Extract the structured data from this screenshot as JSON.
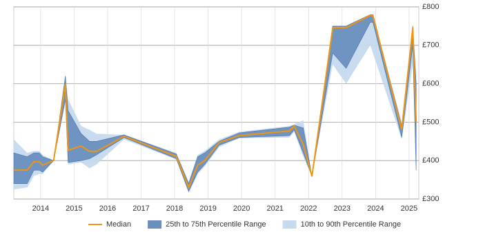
{
  "chart_data": {
    "type": "line",
    "x": [
      2013.2,
      2013.6,
      2013.8,
      2013.96,
      2014.06,
      2014.39,
      2014.74,
      2014.82,
      2015.21,
      2015.46,
      2015.67,
      2016.49,
      2018.05,
      2018.42,
      2018.69,
      2018.9,
      2019.33,
      2019.93,
      2021.43,
      2021.57,
      2021.84,
      2022.1,
      2022.72,
      2023.12,
      2023.84,
      2023.92,
      2024.78,
      2025.11,
      2025.21
    ],
    "series": [
      {
        "name": "10th to 90th Percentile Range",
        "color": "#c6daee",
        "lower": [
          325,
          330,
          360,
          365,
          365,
          400,
          550,
          390,
          395,
          380,
          390,
          455,
          403,
          315,
          365,
          385,
          435,
          458,
          460,
          475,
          410,
          359,
          650,
          600,
          700,
          680,
          455,
          650,
          370
        ],
        "upper": [
          455,
          420,
          425,
          425,
          415,
          400,
          625,
          560,
          490,
          480,
          470,
          467,
          420,
          345,
          415,
          425,
          455,
          475,
          490,
          495,
          505,
          359,
          750,
          750,
          780,
          780,
          500,
          755,
          620
        ]
      },
      {
        "name": "25th to 75th Percentile Range",
        "color": "#6a8fbf",
        "lower": [
          340,
          340,
          375,
          375,
          370,
          400,
          560,
          395,
          400,
          405,
          415,
          460,
          405,
          320,
          370,
          390,
          440,
          460,
          465,
          480,
          420,
          359,
          680,
          640,
          760,
          760,
          460,
          700,
          375
        ],
        "upper": [
          420,
          410,
          420,
          420,
          410,
          400,
          620,
          530,
          470,
          450,
          450,
          467,
          417,
          340,
          410,
          420,
          450,
          472,
          487,
          492,
          485,
          359,
          750,
          750,
          780,
          780,
          490,
          750,
          600
        ]
      },
      {
        "name": "Median",
        "color": "#f0960e",
        "values": [
          375,
          375,
          397,
          397,
          388,
          400,
          600,
          427,
          438,
          424,
          424,
          463,
          411,
          330,
          388,
          400,
          447,
          465,
          477,
          490,
          442,
          359,
          746,
          746,
          778,
          778,
          481,
          746,
          500
        ]
      }
    ],
    "legend_order": [
      2,
      1,
      0
    ],
    "xlim": [
      2013.2,
      2025.29
    ],
    "xticks": [
      2014,
      2015,
      2016,
      2017,
      2018,
      2019,
      2020,
      2021,
      2022,
      2023,
      2024,
      2025
    ],
    "ylim": [
      300,
      800
    ],
    "yticks": [
      {
        "value": 300,
        "label": "£300"
      },
      {
        "value": 400,
        "label": "£400"
      },
      {
        "value": 500,
        "label": "£500"
      },
      {
        "value": 600,
        "label": "£600"
      },
      {
        "value": 700,
        "label": "£700"
      },
      {
        "value": 800,
        "label": "£800"
      }
    ],
    "grid": true,
    "legend": "bottom"
  }
}
